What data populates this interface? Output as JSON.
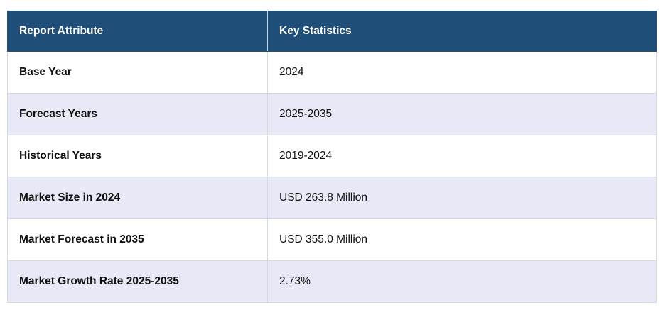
{
  "table": {
    "header": [
      "Report Attribute",
      "Key Statistics"
    ],
    "rows": [
      [
        "Base Year",
        "2024"
      ],
      [
        "Forecast Years",
        "2025-2035"
      ],
      [
        "Historical Years",
        "2019-2024"
      ],
      [
        "Market Size in 2024",
        "USD 263.8 Million"
      ],
      [
        "Market Forecast in 2035",
        "USD 355.0 Million"
      ],
      [
        "Market Growth Rate 2025-2035",
        "2.73%"
      ]
    ]
  }
}
